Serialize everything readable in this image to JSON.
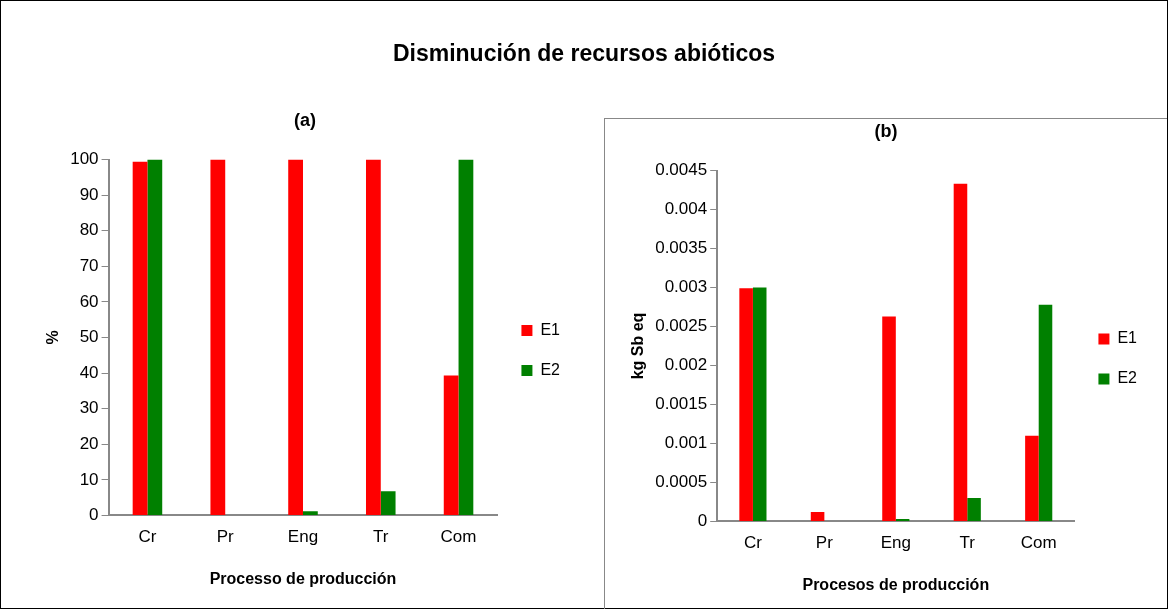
{
  "chart_data": [
    {
      "type": "other",
      "title": "Disminución de recursos abióticos"
    },
    {
      "type": "bar",
      "title": "(a)",
      "xlabel": "Processo de producción",
      "ylabel": "%",
      "categories": [
        "Cr",
        "Pr",
        "Eng",
        "Tr",
        "Com"
      ],
      "series": [
        {
          "name": "E1",
          "color": "#ff0000",
          "values": [
            99.4,
            100,
            100,
            100,
            39.3
          ]
        },
        {
          "name": "E2",
          "color": "#008000",
          "values": [
            100,
            0,
            1.2,
            6.8,
            100
          ]
        }
      ],
      "ylim": [
        0,
        100
      ],
      "yticks": [
        0,
        10,
        20,
        30,
        40,
        50,
        60,
        70,
        80,
        90,
        100
      ],
      "grid": false,
      "legend": "right"
    },
    {
      "type": "bar",
      "title": "(b)",
      "xlabel": "Procesos de producción",
      "ylabel": "kg Sb eq",
      "categories": [
        "Cr",
        "Pr",
        "Eng",
        "Tr",
        "Com"
      ],
      "series": [
        {
          "name": "E1",
          "color": "#ff0000",
          "values": [
            0.00299,
            0.00012,
            0.00263,
            0.00433,
            0.0011
          ]
        },
        {
          "name": "E2",
          "color": "#008000",
          "values": [
            0.003,
            0,
            3e-05,
            0.0003,
            0.00278
          ]
        }
      ],
      "ylim": [
        0,
        0.0045
      ],
      "yticks": [
        0,
        0.0005,
        0.001,
        0.0015,
        0.002,
        0.0025,
        0.003,
        0.0035,
        0.004,
        0.0045
      ],
      "grid": false,
      "legend": "right"
    }
  ]
}
